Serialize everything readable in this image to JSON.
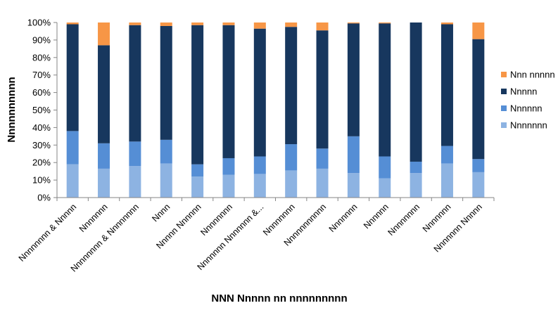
{
  "chart_data": {
    "type": "bar",
    "stacked": true,
    "title": "",
    "xlabel": "NNN Nnnnn nn nnnnnnnnn",
    "ylabel": "Nnnnnnnnnn",
    "ylim": [
      0,
      100
    ],
    "y_unit": "%",
    "y_ticks": [
      "0%",
      "10%",
      "20%",
      "30%",
      "40%",
      "50%",
      "60%",
      "70%",
      "80%",
      "90%",
      "100%"
    ],
    "grid": false,
    "legend_position": "right",
    "categories": [
      "Nnnnnnnn & Nnnnn",
      "Nnnnnnn",
      "Nnnnnnnn & Nnnnnnnn",
      "Nnnn",
      "Nnnnn Nnnnnn",
      "Nnnnnnnn",
      "Nnnnnnn Nnnnnnn &...",
      "Nnnnnnnn",
      "Nnnnnnnnnnn",
      "Nnnnnnn",
      "Nnnnnn",
      "Nnnnnnnn",
      "Nnnnnnn",
      "Nnnnnnn Nnnnn"
    ],
    "series": [
      {
        "name": "Nnnnnnn",
        "color": "#8db3e2",
        "values": [
          19,
          16.5,
          18,
          19.5,
          12,
          13,
          13.5,
          15.5,
          16.5,
          14,
          11,
          14,
          19.5,
          14.5
        ]
      },
      {
        "name": "Nnnnnn",
        "color": "#558ed5",
        "values": [
          19,
          14.5,
          14,
          13.5,
          7,
          9.5,
          10,
          15,
          11.5,
          21,
          12.5,
          6.5,
          10,
          7.5
        ]
      },
      {
        "name": "Nnnnn",
        "color": "#17375e",
        "values": [
          61,
          56,
          66.5,
          65,
          79.5,
          76,
          73,
          67,
          67.5,
          64.5,
          76,
          79.5,
          69.5,
          68.5
        ]
      },
      {
        "name": "Nnn nnnnn",
        "color": "#f79646",
        "values": [
          1,
          13,
          1.5,
          2,
          1.5,
          1.5,
          3.5,
          2.5,
          4.5,
          0.5,
          0.5,
          0,
          1,
          9.5
        ]
      }
    ]
  }
}
